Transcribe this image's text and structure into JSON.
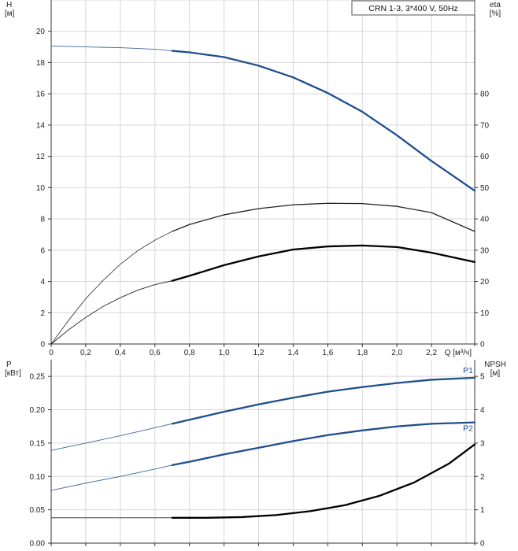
{
  "chart_data": [
    {
      "type": "line",
      "legend_text": "CRN 1-3, 3*400 V, 50Hz",
      "y_left_label_top": "H",
      "y_left_label_unit": "[м]",
      "y_right_label_top": "eta",
      "y_right_label_unit": "[%]",
      "x_label": "Q [м³/ч]",
      "xlim": [
        0,
        2.45
      ],
      "ylim_left": [
        0,
        22
      ],
      "ylim_right": [
        0,
        110
      ],
      "x_ticks": [
        0,
        0.2,
        0.4,
        0.6,
        0.8,
        1.0,
        1.2,
        1.4,
        1.6,
        1.8,
        2.0,
        2.2
      ],
      "x_tick_labels": [
        "0",
        "0,2",
        "0,4",
        "0,6",
        "0,8",
        "1,0",
        "1,2",
        "1,4",
        "1,6",
        "1,8",
        "2,0",
        "2,2"
      ],
      "y_left_ticks": [
        0,
        2,
        4,
        6,
        8,
        10,
        12,
        14,
        16,
        18,
        20
      ],
      "y_right_ticks": [
        0,
        10,
        20,
        30,
        40,
        50,
        60,
        70,
        80
      ],
      "grid": true,
      "legend_position": "top-right",
      "series": [
        {
          "axis": "left",
          "color": "#1f4e8c",
          "operating_from": 0.7,
          "points": [
            [
              0.0,
              19.05
            ],
            [
              0.2,
              19.0
            ],
            [
              0.4,
              18.95
            ],
            [
              0.6,
              18.85
            ],
            [
              0.7,
              18.75
            ],
            [
              0.8,
              18.65
            ],
            [
              1.0,
              18.35
            ],
            [
              1.2,
              17.8
            ],
            [
              1.4,
              17.05
            ],
            [
              1.6,
              16.05
            ],
            [
              1.8,
              14.85
            ],
            [
              2.0,
              13.35
            ],
            [
              2.2,
              11.7
            ],
            [
              2.45,
              9.8
            ]
          ]
        },
        {
          "axis": "right",
          "color": "#222222",
          "operating_from": 0.7,
          "points": [
            [
              0.0,
              0
            ],
            [
              0.1,
              7.5
            ],
            [
              0.2,
              14.5
            ],
            [
              0.3,
              20.3
            ],
            [
              0.4,
              25.5
            ],
            [
              0.5,
              29.8
            ],
            [
              0.6,
              33.2
            ],
            [
              0.7,
              36.0
            ],
            [
              0.8,
              38.2
            ],
            [
              1.0,
              41.3
            ],
            [
              1.2,
              43.3
            ],
            [
              1.4,
              44.5
            ],
            [
              1.6,
              45.0
            ],
            [
              1.8,
              44.9
            ],
            [
              2.0,
              44.0
            ],
            [
              2.2,
              42.0
            ],
            [
              2.45,
              36.0
            ]
          ]
        },
        {
          "axis": "right",
          "color": "#000000",
          "operating_from": 0.7,
          "points": [
            [
              0.0,
              0
            ],
            [
              0.1,
              4.5
            ],
            [
              0.2,
              8.5
            ],
            [
              0.3,
              12.0
            ],
            [
              0.4,
              14.8
            ],
            [
              0.5,
              17.2
            ],
            [
              0.6,
              19.0
            ],
            [
              0.7,
              20.2
            ],
            [
              0.8,
              21.8
            ],
            [
              1.0,
              25.2
            ],
            [
              1.2,
              28.0
            ],
            [
              1.4,
              30.2
            ],
            [
              1.6,
              31.2
            ],
            [
              1.8,
              31.5
            ],
            [
              2.0,
              31.0
            ],
            [
              2.2,
              29.2
            ],
            [
              2.45,
              26.2
            ]
          ]
        }
      ]
    },
    {
      "type": "line",
      "y_left_label_top": "P",
      "y_left_label_unit": "[кВт]",
      "y_right_label_top": "NPSH",
      "y_right_label_unit": "[м]",
      "xlim": [
        0,
        2.45
      ],
      "ylim_left": [
        0,
        0.275
      ],
      "ylim_right": [
        0,
        5.5
      ],
      "x_ticks": [
        0,
        0.2,
        0.4,
        0.6,
        0.8,
        1.0,
        1.2,
        1.4,
        1.6,
        1.8,
        2.0,
        2.2
      ],
      "y_left_ticks": [
        0,
        0.05,
        0.1,
        0.15,
        0.2,
        0.25
      ],
      "y_left_tick_labels": [
        "0.00",
        "0.05",
        "0.10",
        "0.15",
        "0.20",
        "0.25"
      ],
      "y_right_ticks": [
        0,
        1,
        2,
        3,
        4,
        5
      ],
      "grid": true,
      "series": [
        {
          "name": "P1",
          "axis": "left",
          "color": "#1f4e8c",
          "operating_from": 0.7,
          "points": [
            [
              0.0,
              0.139
            ],
            [
              0.2,
              0.15
            ],
            [
              0.4,
              0.161
            ],
            [
              0.6,
              0.173
            ],
            [
              0.7,
              0.179
            ],
            [
              0.8,
              0.185
            ],
            [
              1.0,
              0.197
            ],
            [
              1.2,
              0.208
            ],
            [
              1.4,
              0.218
            ],
            [
              1.6,
              0.227
            ],
            [
              1.8,
              0.234
            ],
            [
              2.0,
              0.24
            ],
            [
              2.2,
              0.245
            ],
            [
              2.45,
              0.248
            ]
          ]
        },
        {
          "name": "P2",
          "axis": "left",
          "color": "#1f4e8c",
          "operating_from": 0.7,
          "points": [
            [
              0.0,
              0.079
            ],
            [
              0.2,
              0.09
            ],
            [
              0.4,
              0.1
            ],
            [
              0.6,
              0.111
            ],
            [
              0.7,
              0.117
            ],
            [
              0.8,
              0.122
            ],
            [
              1.0,
              0.133
            ],
            [
              1.2,
              0.143
            ],
            [
              1.4,
              0.153
            ],
            [
              1.6,
              0.162
            ],
            [
              1.8,
              0.169
            ],
            [
              2.0,
              0.175
            ],
            [
              2.2,
              0.179
            ],
            [
              2.45,
              0.181
            ]
          ]
        },
        {
          "axis": "right",
          "color": "#000000",
          "operating_from": 0.7,
          "points": [
            [
              0.0,
              0.76
            ],
            [
              0.3,
              0.76
            ],
            [
              0.6,
              0.76
            ],
            [
              0.7,
              0.76
            ],
            [
              0.9,
              0.76
            ],
            [
              1.1,
              0.78
            ],
            [
              1.3,
              0.84
            ],
            [
              1.5,
              0.96
            ],
            [
              1.7,
              1.14
            ],
            [
              1.9,
              1.42
            ],
            [
              2.1,
              1.82
            ],
            [
              2.3,
              2.38
            ],
            [
              2.45,
              2.96
            ]
          ]
        }
      ]
    }
  ]
}
